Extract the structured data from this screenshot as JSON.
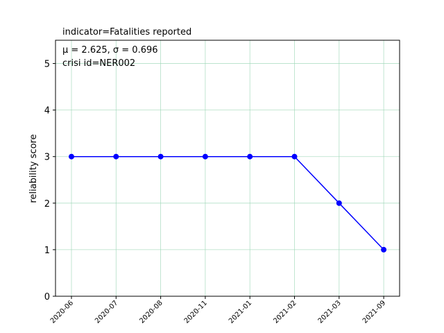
{
  "chart_data": {
    "type": "line",
    "title": "indicator=Fatalities reported",
    "ylabel": "reliability score",
    "xlabel": "",
    "stats_text": "μ = 2.625,  σ = 0.696",
    "group_text": "crisi id=NER002",
    "categories": [
      "2020-06",
      "2020-07",
      "2020-08",
      "2020-11",
      "2021-01",
      "2021-02",
      "2021-03",
      "2021-09"
    ],
    "series": [
      {
        "values": [
          3,
          3,
          3,
          3,
          3,
          3,
          2,
          1
        ],
        "color": "#0000ff"
      }
    ],
    "ylim": [
      0,
      5.5
    ],
    "yticks": [
      0,
      1,
      2,
      3,
      4,
      5
    ],
    "grid": true,
    "grid_color": "#9fd8b8"
  }
}
